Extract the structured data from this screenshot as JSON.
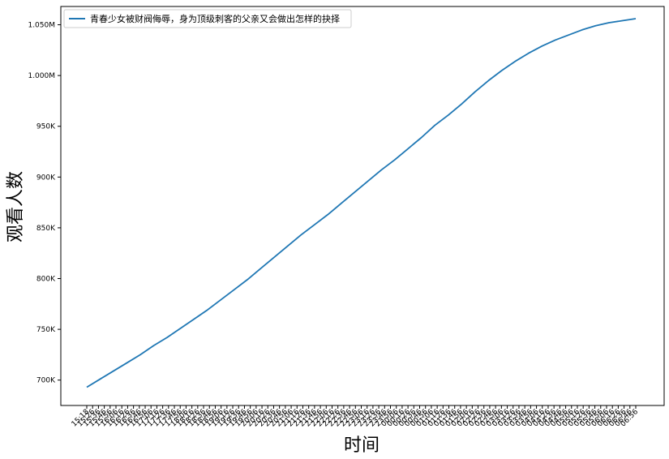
{
  "chart_data": {
    "type": "line",
    "title": "",
    "xlabel": "时间",
    "ylabel": "观看人数",
    "legend": {
      "placement": "top-left"
    },
    "grid": false,
    "ylim": [
      675000,
      1068000
    ],
    "y_ticks": [
      {
        "value": 700000,
        "label": "700K"
      },
      {
        "value": 750000,
        "label": "750K"
      },
      {
        "value": 800000,
        "label": "800K"
      },
      {
        "value": 850000,
        "label": "850K"
      },
      {
        "value": 900000,
        "label": "900K"
      },
      {
        "value": 950000,
        "label": "950K"
      },
      {
        "value": 1000000,
        "label": "1.000M"
      },
      {
        "value": 1050000,
        "label": "1.050M"
      }
    ],
    "x_tick_labels": [
      "15:18",
      "15:26",
      "15:36",
      "15:46",
      "15:56",
      "16:06",
      "16:16",
      "16:26",
      "16:36",
      "16:46",
      "16:56",
      "17:06",
      "17:16",
      "17:26",
      "17:36",
      "17:46",
      "17:56",
      "18:06",
      "18:16",
      "18:26",
      "18:36",
      "18:46",
      "18:56",
      "19:06",
      "19:16",
      "19:26",
      "19:36",
      "19:46",
      "19:56",
      "20:06",
      "20:16",
      "20:26",
      "20:36",
      "20:46",
      "20:56",
      "21:06",
      "21:16",
      "21:26",
      "21:36",
      "21:46",
      "21:56",
      "22:06",
      "22:16",
      "22:26",
      "22:36",
      "22:46",
      "22:56",
      "23:06",
      "23:16",
      "23:26",
      "23:36",
      "23:46",
      "23:56",
      "00:06",
      "00:16",
      "00:26",
      "00:36",
      "00:46",
      "00:56",
      "01:06",
      "01:16",
      "01:26",
      "01:36",
      "01:46",
      "01:56",
      "02:06",
      "02:16",
      "02:26",
      "02:36",
      "02:46",
      "02:56",
      "03:06",
      "03:16",
      "03:26",
      "03:36",
      "03:46",
      "03:56",
      "04:06",
      "04:16",
      "04:26",
      "04:36",
      "04:46",
      "04:56",
      "05:06",
      "05:16",
      "05:26",
      "05:36",
      "05:46",
      "05:56",
      "06:06",
      "06:16",
      "06:26",
      "06:36",
      "06:46",
      "06:56"
    ],
    "series": [
      {
        "name": "青春少女被财阀侮辱，身为顶级刺客的父亲又会做出怎样的抉择",
        "color": "#1f77b4",
        "values": [
          693000,
          701000,
          709000,
          717000,
          725000,
          734000,
          742000,
          751000,
          760000,
          769000,
          779000,
          789000,
          799000,
          810000,
          821000,
          832000,
          843000,
          853000,
          863000,
          874000,
          885000,
          896000,
          907000,
          917000,
          928000,
          939000,
          951000,
          961000,
          972000,
          984000,
          995000,
          1005000,
          1014000,
          1022000,
          1029000,
          1035000,
          1040000,
          1045000,
          1049000,
          1052000,
          1054000,
          1056000
        ]
      }
    ]
  }
}
